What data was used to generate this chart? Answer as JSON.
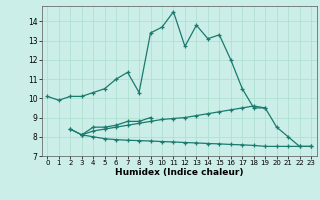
{
  "xlabel": "Humidex (Indice chaleur)",
  "bg_color": "#cceee8",
  "grid_color": "#aaddcc",
  "line_color": "#1a7a6e",
  "xlim": [
    -0.5,
    23.5
  ],
  "ylim": [
    7,
    14.8
  ],
  "xticks": [
    0,
    1,
    2,
    3,
    4,
    5,
    6,
    7,
    8,
    9,
    10,
    11,
    12,
    13,
    14,
    15,
    16,
    17,
    18,
    19,
    20,
    21,
    22,
    23
  ],
  "yticks": [
    7,
    8,
    9,
    10,
    11,
    12,
    13,
    14
  ],
  "line1_x": [
    0,
    1,
    2,
    3,
    4,
    5,
    6,
    7,
    8,
    9,
    10,
    11,
    12,
    13,
    14,
    15,
    16,
    17,
    18,
    19
  ],
  "line1_y": [
    10.1,
    9.9,
    10.1,
    10.1,
    10.3,
    10.5,
    11.0,
    11.35,
    10.3,
    13.4,
    13.7,
    14.5,
    12.7,
    13.8,
    13.1,
    13.3,
    12.0,
    10.5,
    9.5,
    9.5
  ],
  "line2_x": [
    2,
    3,
    4,
    5,
    6,
    7,
    8,
    9
  ],
  "line2_y": [
    8.4,
    8.1,
    8.5,
    8.5,
    8.6,
    8.8,
    8.8,
    9.0
  ],
  "line3_x": [
    2,
    3,
    4,
    5,
    6,
    7,
    8,
    9,
    10,
    11,
    12,
    13,
    14,
    15,
    16,
    17,
    18,
    19,
    20,
    21,
    22,
    23
  ],
  "line3_y": [
    8.4,
    8.1,
    8.3,
    8.4,
    8.5,
    8.6,
    8.7,
    8.8,
    8.9,
    8.95,
    9.0,
    9.1,
    9.2,
    9.3,
    9.4,
    9.5,
    9.6,
    9.5,
    8.5,
    8.0,
    7.5,
    7.5
  ],
  "line4_x": [
    3,
    4,
    5,
    6,
    7,
    8,
    9,
    10,
    11,
    12,
    13,
    14,
    15,
    16,
    17,
    18,
    19,
    20,
    21,
    22,
    23
  ],
  "line4_y": [
    8.1,
    8.0,
    7.9,
    7.85,
    7.82,
    7.8,
    7.78,
    7.75,
    7.73,
    7.7,
    7.68,
    7.65,
    7.63,
    7.6,
    7.58,
    7.55,
    7.5,
    7.5,
    7.5,
    7.5,
    7.5
  ]
}
